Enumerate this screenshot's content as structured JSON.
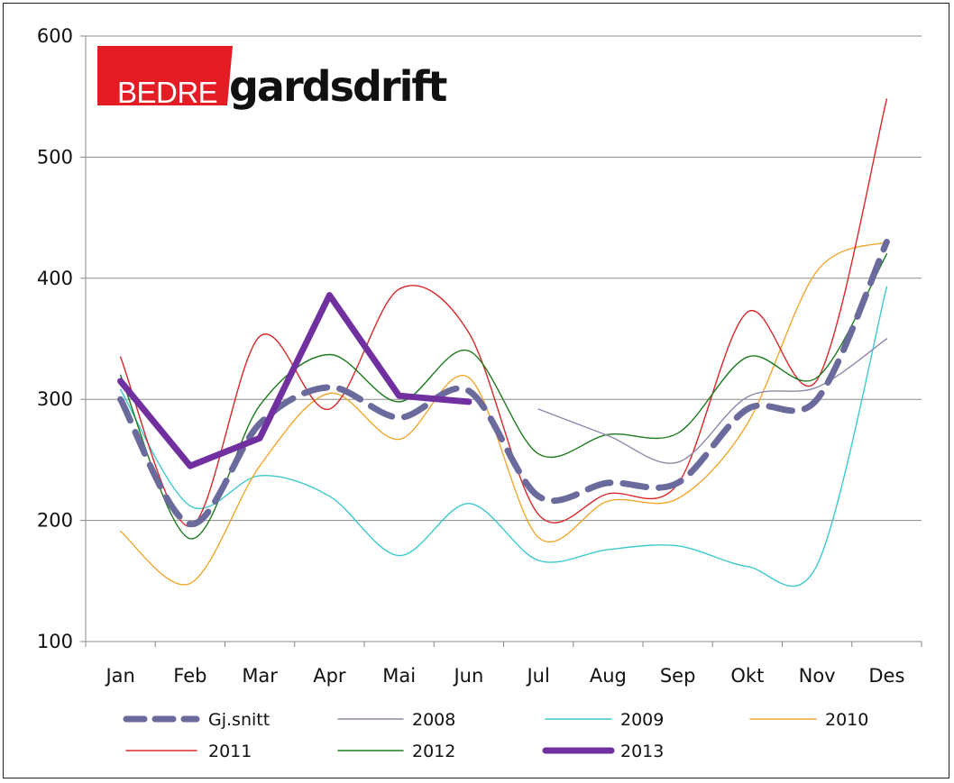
{
  "logo": {
    "part1": "BEDRE",
    "part2": "gardsdrift"
  },
  "chart_data": {
    "type": "line",
    "title": "",
    "xlabel": "",
    "ylabel": "",
    "categories": [
      "Jan",
      "Feb",
      "Mar",
      "Apr",
      "Mai",
      "Jun",
      "Jul",
      "Aug",
      "Sep",
      "Okt",
      "Nov",
      "Des"
    ],
    "ylim": [
      100,
      600
    ],
    "yticks": [
      100,
      200,
      300,
      400,
      500,
      600
    ],
    "grid": true,
    "legend_position": "bottom",
    "series": [
      {
        "name": "Gj.snitt",
        "color": "#6b6a9c",
        "style": "dashed",
        "values": [
          300,
          197,
          280,
          310,
          285,
          307,
          220,
          231,
          231,
          292,
          300,
          430
        ]
      },
      {
        "name": "2008",
        "color": "#8c89a9",
        "style": "solid",
        "values": [
          null,
          null,
          null,
          null,
          null,
          null,
          292,
          270,
          248,
          302,
          310,
          350
        ]
      },
      {
        "name": "2009",
        "color": "#3ec9cf",
        "style": "solid",
        "values": [
          308,
          212,
          237,
          220,
          171,
          214,
          167,
          176,
          179,
          162,
          163,
          393
        ]
      },
      {
        "name": "2010",
        "color": "#f0a830",
        "style": "solid",
        "values": [
          191,
          148,
          245,
          305,
          267,
          318,
          186,
          216,
          218,
          280,
          406,
          430
        ]
      },
      {
        "name": "2011",
        "color": "#d8282b",
        "style": "solid",
        "values": [
          335,
          195,
          352,
          292,
          391,
          355,
          205,
          222,
          230,
          372,
          316,
          548
        ]
      },
      {
        "name": "2012",
        "color": "#1c7a1c",
        "style": "solid",
        "values": [
          320,
          185,
          295,
          337,
          298,
          340,
          255,
          271,
          272,
          335,
          318,
          420
        ]
      },
      {
        "name": "2013",
        "color": "#7030a0",
        "style": "thick",
        "values": [
          315,
          245,
          268,
          386,
          303,
          298,
          null,
          null,
          null,
          null,
          null,
          null
        ]
      }
    ]
  }
}
